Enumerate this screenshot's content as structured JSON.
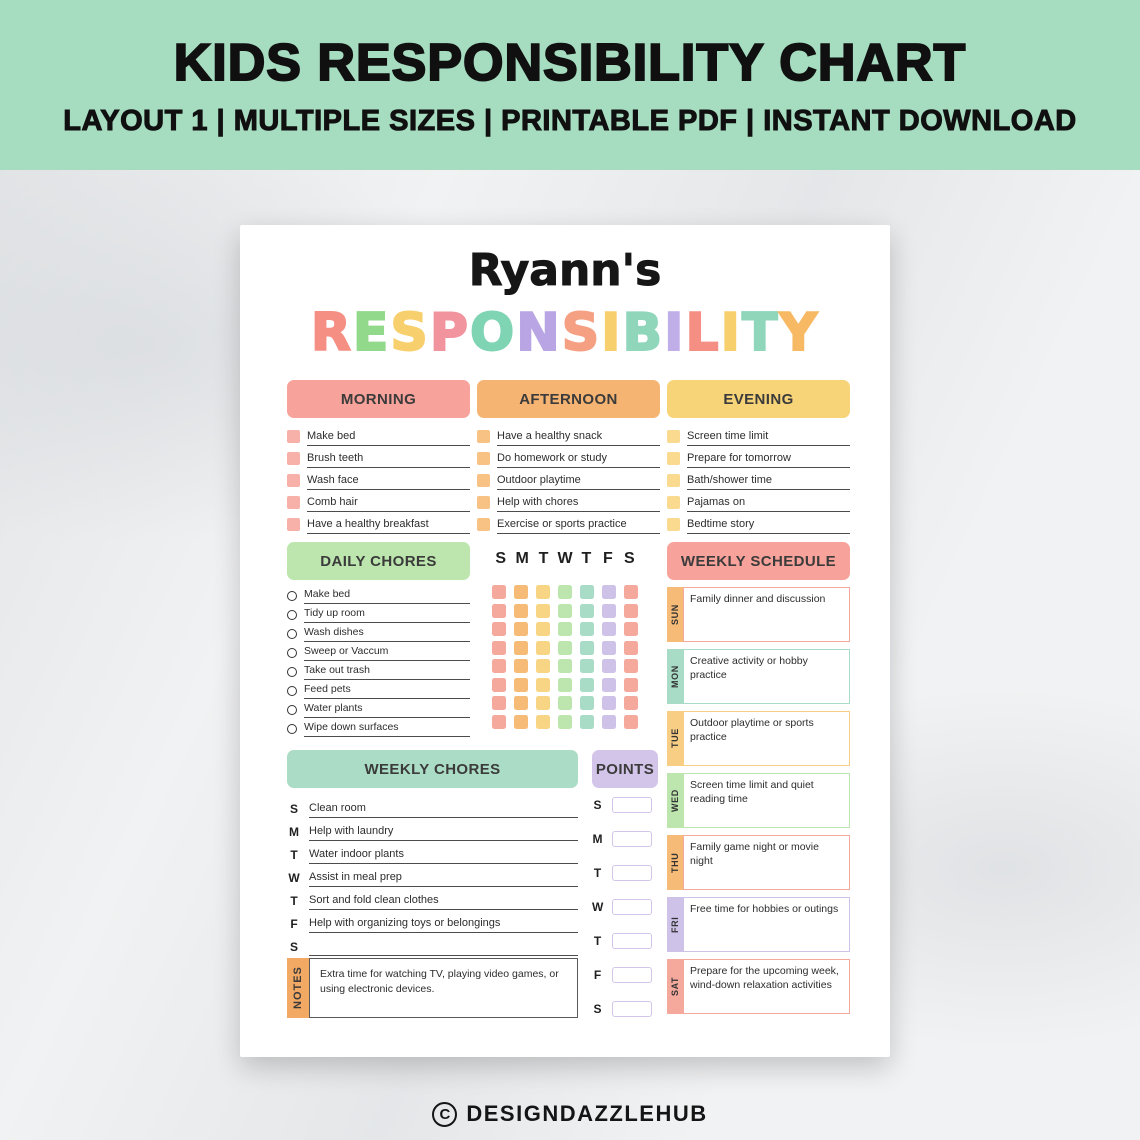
{
  "banner": {
    "bg_color": "#a6dcc0",
    "title": "KIDS RESPONSIBILITY CHART",
    "subtitle": "LAYOUT 1 | MULTIPLE SIZES | PRINTABLE PDF | INSTANT DOWNLOAD"
  },
  "chart": {
    "owner_name": "Ryann's",
    "title_letters": [
      {
        "ch": "R",
        "color": "#f58f84"
      },
      {
        "ch": "E",
        "color": "#93d98b"
      },
      {
        "ch": "S",
        "color": "#f7cf6d"
      },
      {
        "ch": "P",
        "color": "#f2949e"
      },
      {
        "ch": "O",
        "color": "#7fd4b4"
      },
      {
        "ch": "N",
        "color": "#b9a5e3"
      },
      {
        "ch": "S",
        "color": "#f5a083"
      },
      {
        "ch": "I",
        "color": "#f7cf6d"
      },
      {
        "ch": "B",
        "color": "#8fd6bb"
      },
      {
        "ch": "I",
        "color": "#c0aee8"
      },
      {
        "ch": "L",
        "color": "#f58f84"
      },
      {
        "ch": "I",
        "color": "#f7cf6d"
      },
      {
        "ch": "T",
        "color": "#8fd6bb"
      },
      {
        "ch": "Y",
        "color": "#f7b963"
      }
    ],
    "sections": {
      "morning": {
        "label": "MORNING",
        "color": "#f7a29a",
        "checkbox_color": "#f8b1a8",
        "items": [
          "Make bed",
          "Brush teeth",
          "Wash face",
          "Comb hair",
          "Have a healthy breakfast"
        ]
      },
      "afternoon": {
        "label": "AFTERNOON",
        "color": "#f6b473",
        "checkbox_color": "#f8c284",
        "items": [
          "Have a healthy snack",
          "Do homework or study",
          "Outdoor playtime",
          "Help with chores",
          "Exercise or sports practice"
        ]
      },
      "evening": {
        "label": "EVENING",
        "color": "#f8d478",
        "checkbox_color": "#f9da8e",
        "items": [
          "Screen time limit",
          "Prepare for tomorrow",
          "Bath/shower time",
          "Pajamas on",
          "Bedtime story"
        ]
      }
    },
    "daily_chores": {
      "label": "DAILY CHORES",
      "color": "#bce6ad",
      "items": [
        "Make bed",
        "Tidy up room",
        "Wash dishes",
        "Sweep or Vaccum",
        "Take out trash",
        "Feed pets",
        "Water plants",
        "Wipe down surfaces"
      ]
    },
    "habit_tracker": {
      "day_letters": [
        "S",
        "M",
        "T",
        "W",
        "T",
        "F",
        "S"
      ],
      "column_colors": [
        "#f5a89c",
        "#f6bb77",
        "#f8d584",
        "#bce6ad",
        "#a9dcc6",
        "#cfc2e8",
        "#f5a89c"
      ],
      "rows": 8
    },
    "weekly_schedule": {
      "label": "WEEKLY SCHEDULE",
      "color": "#f7a29a",
      "entries": [
        {
          "day": "SUN",
          "day_color": "#f6bb77",
          "border_color": "#f5a89c",
          "text": "Family dinner and discussion"
        },
        {
          "day": "MON",
          "day_color": "#a9dcc6",
          "border_color": "#a9dcc6",
          "text": "Creative activity or hobby practice"
        },
        {
          "day": "TUE",
          "day_color": "#f8cd84",
          "border_color": "#f8cd84",
          "text": "Outdoor playtime or sports practice"
        },
        {
          "day": "WED",
          "day_color": "#bce6ad",
          "border_color": "#bce6ad",
          "text": "Screen time limit and quiet reading time"
        },
        {
          "day": "THU",
          "day_color": "#f6bb77",
          "border_color": "#f5a89c",
          "text": "Family game night or movie night"
        },
        {
          "day": "FRI",
          "day_color": "#cfc2e8",
          "border_color": "#cfc2e8",
          "text": "Free time for hobbies or outings"
        },
        {
          "day": "SAT",
          "day_color": "#f5a89c",
          "border_color": "#f5a89c",
          "text": "Prepare for the upcoming week, wind-down relaxation activities"
        }
      ]
    },
    "weekly_chores": {
      "label": "WEEKLY CHORES",
      "color": "#abdcc5",
      "rows": [
        {
          "day": "S",
          "text": "Clean room"
        },
        {
          "day": "M",
          "text": "Help with laundry"
        },
        {
          "day": "T",
          "text": "Water indoor plants"
        },
        {
          "day": "W",
          "text": "Assist in meal prep"
        },
        {
          "day": "T",
          "text": "Sort and fold clean clothes"
        },
        {
          "day": "F",
          "text": "Help with organizing toys or belongings"
        },
        {
          "day": "S",
          "text": ""
        }
      ]
    },
    "points": {
      "label": "POINTS",
      "color": "#d3c4e9",
      "day_letters": [
        "S",
        "M",
        "T",
        "W",
        "T",
        "F",
        "S"
      ]
    },
    "notes": {
      "label": "NOTES",
      "color": "#f2a964",
      "text": "Extra time for watching TV, playing video games, or using electronic devices."
    }
  },
  "footer": {
    "copyright_letter": "C",
    "brand": "DESIGNDAZZLEHUB"
  }
}
